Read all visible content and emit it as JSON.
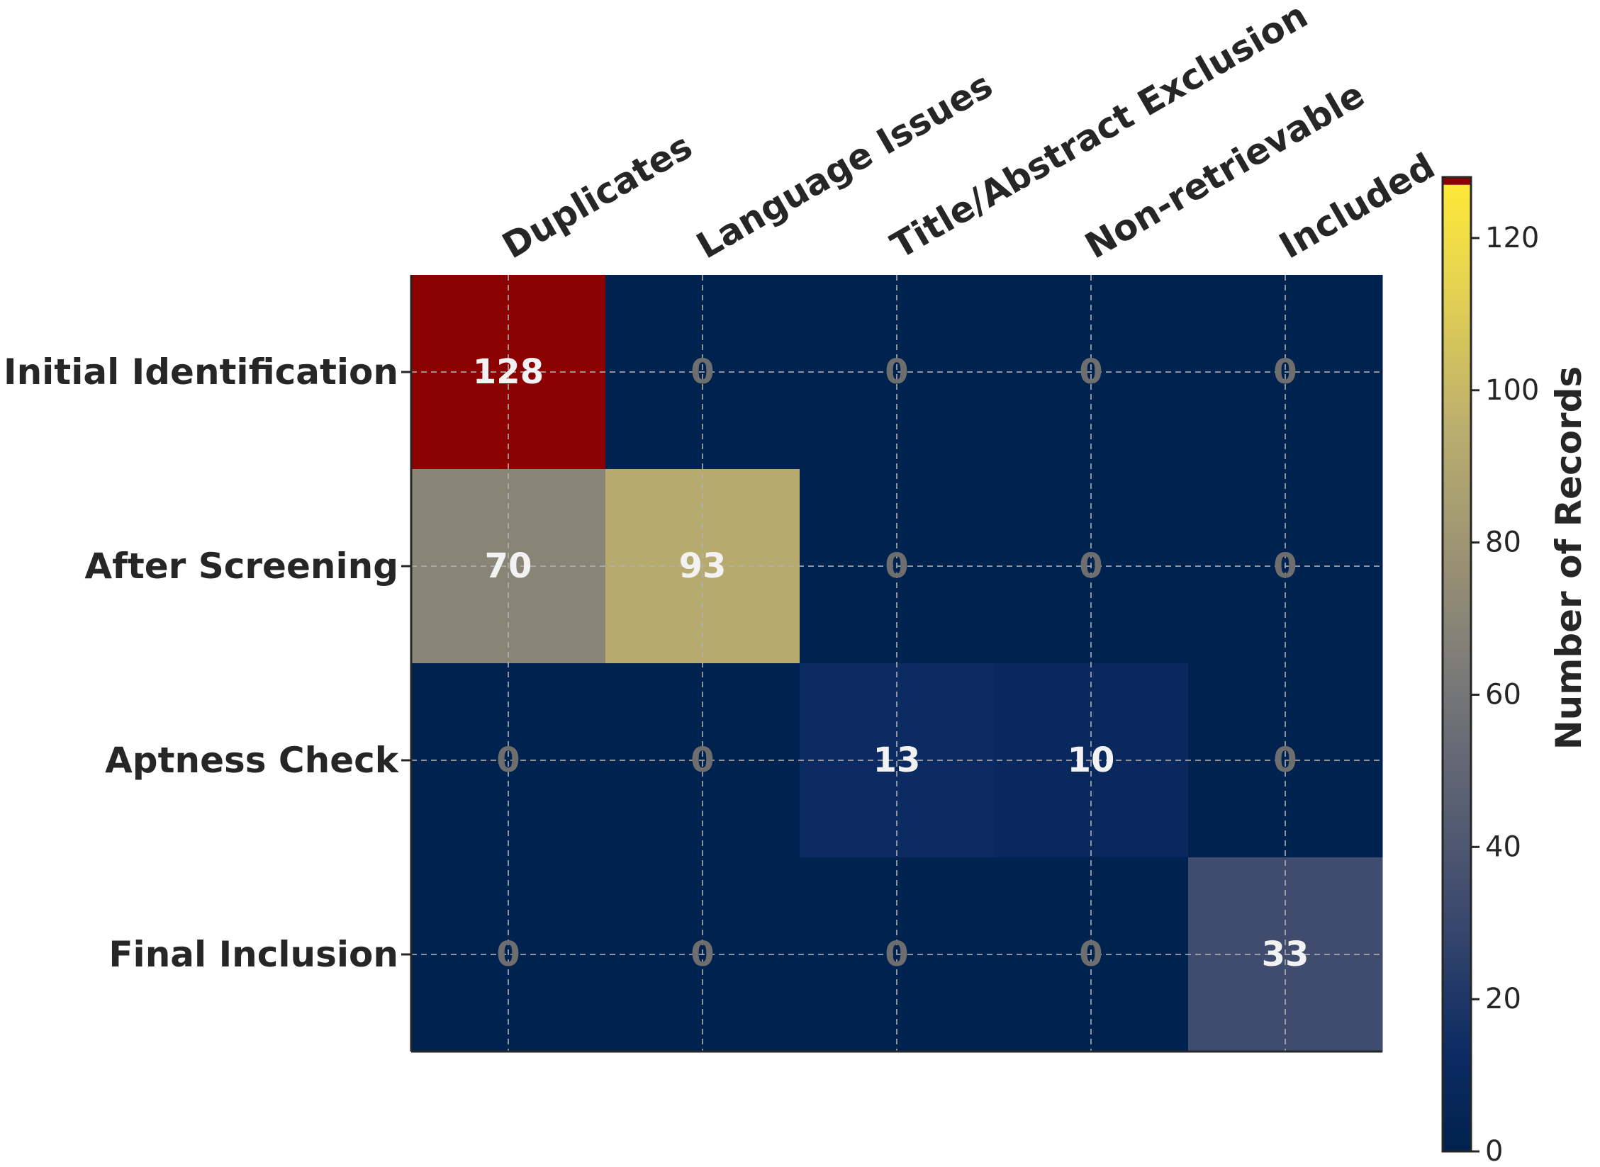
{
  "chart_data": {
    "type": "heatmap",
    "rows": [
      "Initial Identification",
      "After Screening",
      "Aptness Check",
      "Final Inclusion"
    ],
    "columns": [
      "Duplicates",
      "Language Issues",
      "Title/Abstract Exclusion",
      "Non-retrievable",
      "Included"
    ],
    "values": [
      [
        128,
        0,
        0,
        0,
        0
      ],
      [
        70,
        93,
        0,
        0,
        0
      ],
      [
        0,
        0,
        13,
        10,
        0
      ],
      [
        0,
        0,
        0,
        0,
        33
      ]
    ],
    "colorbar": {
      "label": "Number of Records",
      "min": 0,
      "max": 128,
      "ticks": [
        0,
        20,
        40,
        60,
        80,
        100,
        120
      ],
      "colormap": "cividis"
    },
    "grid": true,
    "colors": {
      "low": "#00224e",
      "mid": "#7c7b78",
      "high": "#fee838",
      "over": "#8b0000"
    }
  }
}
